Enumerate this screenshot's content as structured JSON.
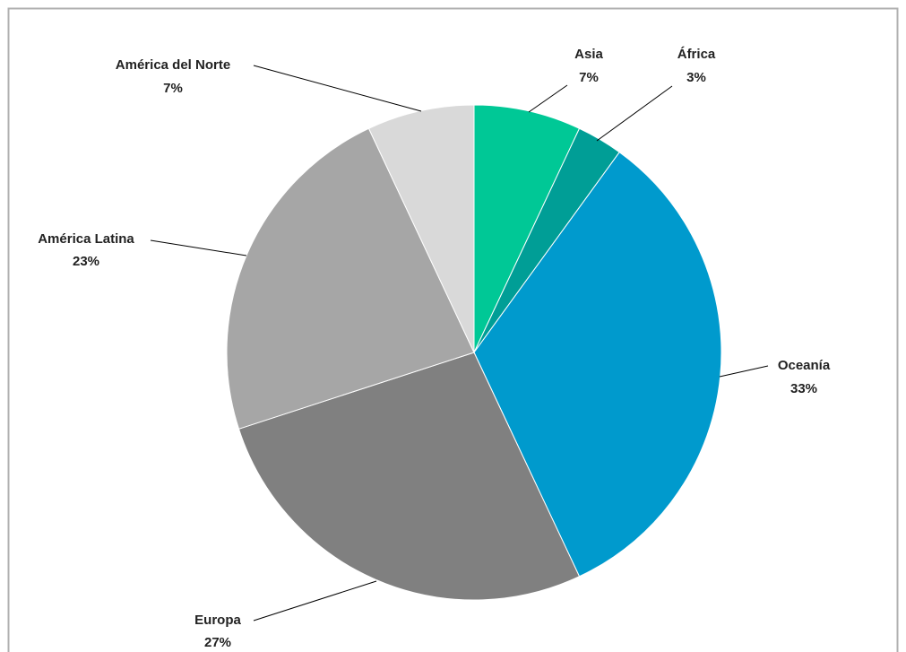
{
  "chart_data": {
    "type": "pie",
    "categories": [
      "Asia",
      "África",
      "Oceanía",
      "Europa",
      "América Latina",
      "América del Norte"
    ],
    "values": [
      7,
      3,
      33,
      27,
      23,
      7
    ],
    "value_labels": [
      "7%",
      "3%",
      "33%",
      "27%",
      "23%",
      "7%"
    ],
    "colors": [
      "#00c896",
      "#009e96",
      "#009acd",
      "#808080",
      "#a6a6a6",
      "#d9d9d9"
    ]
  }
}
